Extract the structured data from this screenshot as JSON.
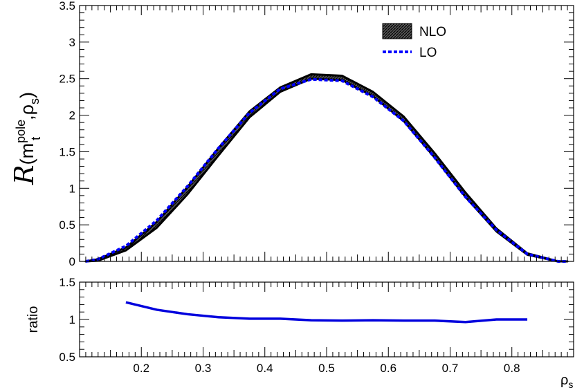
{
  "chart_data": [
    {
      "type": "line",
      "panel": "main",
      "ylabel": {
        "symbol": "R",
        "open": "(m",
        "sup": "pole",
        "sub": "t",
        "comma": ",ρ",
        "sub2": "s",
        "close": ")"
      },
      "xlim": [
        0.1,
        0.9
      ],
      "ylim": [
        0,
        3.5
      ],
      "yticks": [
        "0",
        "0.5",
        "1",
        "1.5",
        "2",
        "2.5",
        "3",
        "3.5"
      ],
      "legend_position": "top-right",
      "series": [
        {
          "name": "NLO",
          "style": "band",
          "color": "#000000",
          "x": [
            0.11,
            0.13,
            0.175,
            0.225,
            0.275,
            0.325,
            0.375,
            0.425,
            0.475,
            0.525,
            0.575,
            0.625,
            0.675,
            0.725,
            0.775,
            0.825,
            0.875,
            0.89
          ],
          "y": [
            0.0,
            0.02,
            0.17,
            0.5,
            0.97,
            1.5,
            2.01,
            2.35,
            2.53,
            2.51,
            2.29,
            1.95,
            1.45,
            0.91,
            0.43,
            0.1,
            0.0,
            0.0
          ],
          "band_halfwidth": [
            0.0,
            0.01,
            0.02,
            0.04,
            0.05,
            0.05,
            0.04,
            0.03,
            0.03,
            0.03,
            0.03,
            0.03,
            0.03,
            0.03,
            0.02,
            0.01,
            0.0,
            0.0
          ]
        },
        {
          "name": "LO",
          "style": "dashed",
          "color": "#0000ff",
          "x": [
            0.11,
            0.13,
            0.175,
            0.225,
            0.275,
            0.325,
            0.375,
            0.425,
            0.475,
            0.525,
            0.575,
            0.625,
            0.675,
            0.725,
            0.775,
            0.825,
            0.875,
            0.89
          ],
          "y": [
            0.0,
            0.03,
            0.21,
            0.56,
            1.03,
            1.55,
            2.03,
            2.36,
            2.49,
            2.47,
            2.25,
            1.92,
            1.42,
            0.88,
            0.43,
            0.1,
            0.0,
            0.0
          ]
        }
      ]
    },
    {
      "type": "line",
      "panel": "ratio",
      "xlabel": {
        "base": "ρ",
        "sub": "s"
      },
      "ylabel": "ratio",
      "xlim": [
        0.1,
        0.9
      ],
      "ylim": [
        0.5,
        1.5
      ],
      "xticks": [
        "0.2",
        "0.3",
        "0.4",
        "0.5",
        "0.6",
        "0.7",
        "0.8"
      ],
      "yticks": [
        "0.5",
        "1",
        "1.5"
      ],
      "series": [
        {
          "color": "#0000dd",
          "x": [
            0.175,
            0.225,
            0.275,
            0.325,
            0.375,
            0.425,
            0.475,
            0.525,
            0.575,
            0.625,
            0.675,
            0.725,
            0.775,
            0.825
          ],
          "y": [
            1.23,
            1.13,
            1.07,
            1.03,
            1.01,
            1.01,
            0.99,
            0.985,
            0.99,
            0.985,
            0.985,
            0.965,
            1.0,
            1.0
          ]
        }
      ]
    }
  ]
}
